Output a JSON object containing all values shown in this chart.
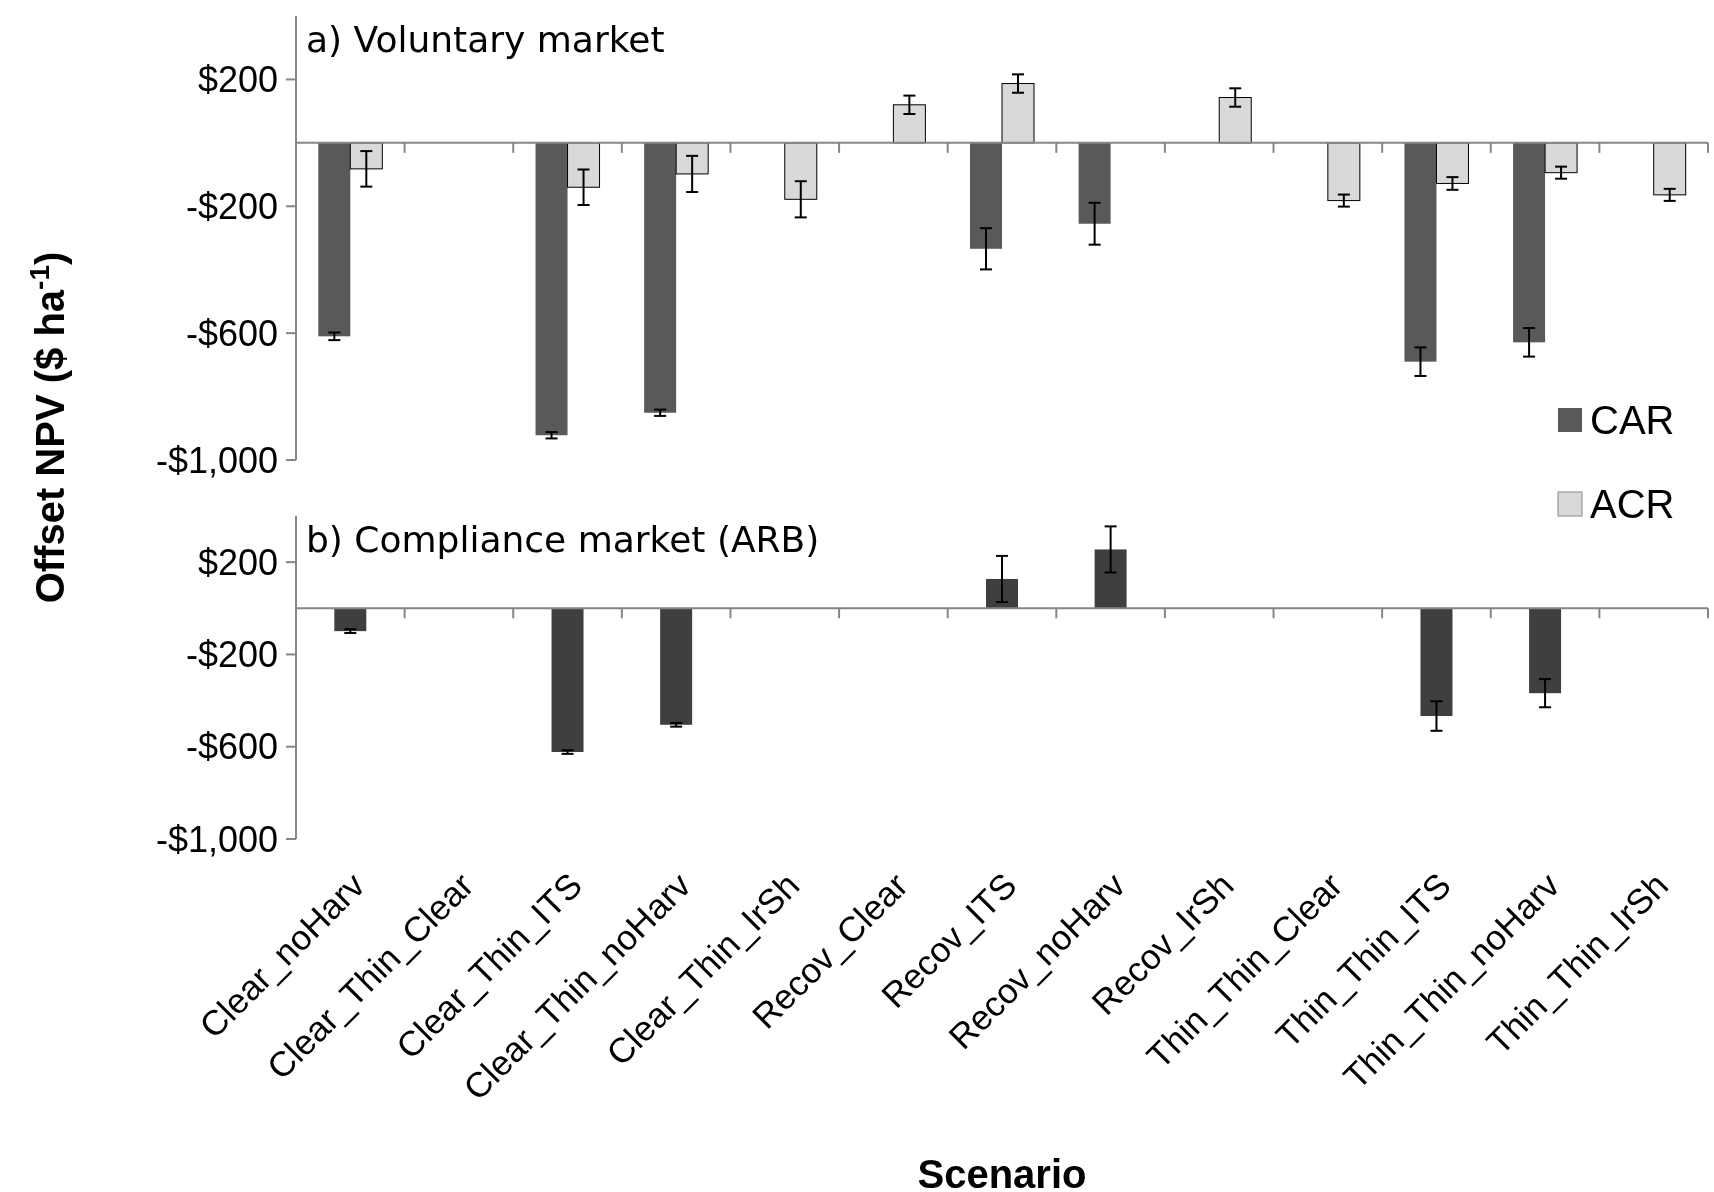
{
  "chart_data": [
    {
      "type": "bar",
      "title": "a) Voluntary market",
      "ylabel": "Offset NPV ($ ha$^{-1}$)",
      "categories": [
        null,
        null,
        null,
        null,
        null,
        null,
        null,
        null,
        null,
        null,
        null,
        null,
        null
      ],
      "series": [
        {
          "name": "CAR",
          "color": "#595959",
          "values": [
            -610,
            null,
            -922,
            -851,
            null,
            null,
            -334,
            -255,
            null,
            null,
            -690,
            -629,
            null
          ],
          "errors": [
            12,
            null,
            10,
            10,
            null,
            null,
            65,
            66,
            null,
            null,
            45,
            45,
            null
          ]
        },
        {
          "name": "ACR",
          "color": "#d9d9d9",
          "values": [
            -82,
            null,
            -140,
            -98,
            -178,
            120,
            187,
            null,
            143,
            -182,
            -128,
            -94,
            -164
          ],
          "errors": [
            56,
            null,
            56,
            57,
            57,
            29,
            29,
            null,
            29,
            19,
            20,
            19,
            19
          ]
        }
      ],
      "ylim": [
        -1000,
        400
      ],
      "yticks": [
        {
          "value": 200,
          "label": "$200"
        },
        {
          "value": -200,
          "label": "-$200"
        },
        {
          "value": -600,
          "label": "-$600"
        },
        {
          "value": -1000,
          "label": "-$1,000"
        }
      ],
      "tick_labels": "y",
      "legend": "bottom right"
    },
    {
      "type": "bar",
      "title": "b) Compliance market (ARB)",
      "xlabel": "Scenario",
      "categories": [
        "Clear_noHarv",
        "Clear_Thin_Clear",
        "Clear_Thin_ITS",
        "Clear_Thin_noHarv",
        "Clear_Thin_IrSh",
        "Recov_Clear",
        "Recov_ITS",
        "Recov_noHarv",
        "Recov_IrSh",
        "Thin_Thin_Clear",
        "Thin_Thin_ITS",
        "Thin_Thin_noHarv",
        "Thin_Thin_IrSh"
      ],
      "series": [
        {
          "color": "#3f3f3f",
          "values": [
            -99,
            null,
            -623,
            -505,
            null,
            null,
            127,
            255,
            null,
            null,
            -467,
            -368,
            null
          ],
          "errors": [
            8,
            null,
            8,
            8,
            null,
            null,
            100,
            100,
            null,
            null,
            64,
            61,
            null
          ]
        }
      ],
      "ylim": [
        -1000,
        400
      ],
      "yticks": [
        {
          "value": 200,
          "label": "$200"
        },
        {
          "value": -200,
          "label": "-$200"
        },
        {
          "value": -600,
          "label": "-$600"
        },
        {
          "value": -1000,
          "label": "-$1,000"
        }
      ]
    }
  ]
}
